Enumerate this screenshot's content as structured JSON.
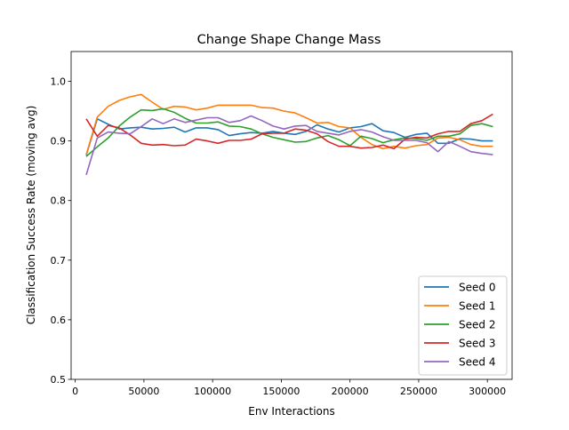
{
  "chart_data": {
    "type": "line",
    "title": "Change Shape Change Mass",
    "xlabel": "Env Interactions",
    "ylabel": "Classification Success Rate (moving avg)",
    "xlim": [
      -3000,
      318000
    ],
    "ylim": [
      0.5,
      1.05
    ],
    "xticks": [
      0,
      50000,
      100000,
      150000,
      200000,
      250000,
      300000
    ],
    "xtick_labels": [
      "0",
      "50000",
      "100000",
      "150000",
      "200000",
      "250000",
      "300000"
    ],
    "yticks": [
      0.5,
      0.6,
      0.7,
      0.8,
      0.9,
      1.0
    ],
    "ytick_labels": [
      "0.5",
      "0.6",
      "0.7",
      "0.8",
      "0.9",
      "1.0"
    ],
    "grid": false,
    "legend_position": "lower-right",
    "x": [
      8000,
      16000,
      24000,
      32000,
      40000,
      48000,
      56000,
      64000,
      72000,
      80000,
      88000,
      96000,
      104000,
      112000,
      120000,
      128000,
      136000,
      144000,
      152000,
      160000,
      168000,
      176000,
      184000,
      192000,
      200000,
      208000,
      216000,
      224000,
      232000,
      240000,
      248000,
      256000,
      264000,
      272000,
      280000,
      288000,
      296000,
      304000
    ],
    "series": [
      {
        "name": "Seed 0",
        "color": "#1f77b4",
        "values": [
          0.876,
          0.937,
          0.928,
          0.92,
          0.922,
          0.923,
          0.92,
          0.921,
          0.923,
          0.915,
          0.922,
          0.922,
          0.919,
          0.909,
          0.912,
          0.914,
          0.913,
          0.916,
          0.913,
          0.911,
          0.916,
          0.927,
          0.92,
          0.915,
          0.922,
          0.924,
          0.929,
          0.917,
          0.914,
          0.906,
          0.911,
          0.913,
          0.896,
          0.896,
          0.904,
          0.903,
          0.9,
          0.9
        ]
      },
      {
        "name": "Seed 1",
        "color": "#ff7f0e",
        "values": [
          0.877,
          0.94,
          0.958,
          0.968,
          0.974,
          0.978,
          0.965,
          0.953,
          0.958,
          0.957,
          0.952,
          0.955,
          0.96,
          0.96,
          0.96,
          0.96,
          0.956,
          0.955,
          0.95,
          0.947,
          0.939,
          0.93,
          0.931,
          0.924,
          0.922,
          0.906,
          0.894,
          0.887,
          0.891,
          0.888,
          0.892,
          0.894,
          0.905,
          0.906,
          0.902,
          0.894,
          0.891,
          0.891
        ]
      },
      {
        "name": "Seed 2",
        "color": "#2ca02c",
        "values": [
          0.874,
          0.89,
          0.905,
          0.925,
          0.94,
          0.952,
          0.951,
          0.954,
          0.948,
          0.938,
          0.93,
          0.93,
          0.932,
          0.925,
          0.924,
          0.92,
          0.912,
          0.906,
          0.902,
          0.898,
          0.899,
          0.905,
          0.909,
          0.902,
          0.892,
          0.908,
          0.904,
          0.897,
          0.902,
          0.905,
          0.904,
          0.901,
          0.908,
          0.908,
          0.912,
          0.926,
          0.929,
          0.924
        ]
      },
      {
        "name": "Seed 3",
        "color": "#d62728",
        "values": [
          0.937,
          0.908,
          0.926,
          0.922,
          0.91,
          0.896,
          0.893,
          0.894,
          0.892,
          0.893,
          0.903,
          0.9,
          0.896,
          0.901,
          0.901,
          0.903,
          0.912,
          0.913,
          0.913,
          0.92,
          0.918,
          0.912,
          0.899,
          0.891,
          0.891,
          0.888,
          0.889,
          0.893,
          0.887,
          0.903,
          0.906,
          0.905,
          0.912,
          0.916,
          0.916,
          0.929,
          0.934,
          0.945
        ]
      },
      {
        "name": "Seed 4",
        "color": "#9467bd",
        "values": [
          0.843,
          0.905,
          0.915,
          0.913,
          0.912,
          0.924,
          0.937,
          0.929,
          0.937,
          0.931,
          0.935,
          0.939,
          0.939,
          0.931,
          0.934,
          0.942,
          0.934,
          0.925,
          0.92,
          0.925,
          0.926,
          0.916,
          0.913,
          0.91,
          0.916,
          0.919,
          0.915,
          0.907,
          0.901,
          0.901,
          0.901,
          0.897,
          0.882,
          0.899,
          0.891,
          0.882,
          0.879,
          0.877
        ]
      }
    ]
  }
}
